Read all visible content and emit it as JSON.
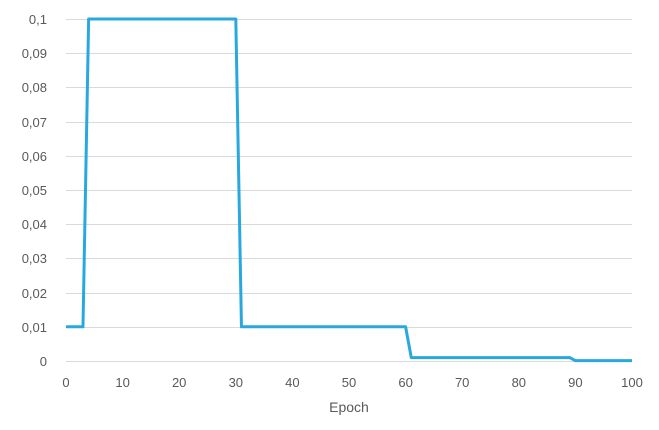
{
  "chart_data": {
    "type": "line",
    "title": "",
    "xlabel": "Epoch",
    "ylabel": "",
    "xlim": [
      0,
      100
    ],
    "ylim": [
      0,
      0.1
    ],
    "x_ticks": [
      0,
      10,
      20,
      30,
      40,
      50,
      60,
      70,
      80,
      90,
      100
    ],
    "x_tick_labels": [
      "0",
      "10",
      "20",
      "30",
      "40",
      "50",
      "60",
      "70",
      "80",
      "90",
      "100"
    ],
    "y_ticks": [
      0,
      0.01,
      0.02,
      0.03,
      0.04,
      0.05,
      0.06,
      0.07,
      0.08,
      0.09,
      0.1
    ],
    "y_tick_labels": [
      "0",
      "0,01",
      "0,02",
      "0,03",
      "0,04",
      "0,05",
      "0,06",
      "0,07",
      "0,08",
      "0,09",
      "0,1"
    ],
    "grid": true,
    "legend": "none",
    "series": [
      {
        "color": "#29a8e0",
        "x": [
          0,
          3,
          4,
          30,
          31,
          60,
          61,
          89,
          90,
          100
        ],
        "y": [
          0.01,
          0.01,
          0.1,
          0.1,
          0.01,
          0.01,
          0.001,
          0.001,
          0.0001,
          0.0001
        ]
      }
    ]
  }
}
